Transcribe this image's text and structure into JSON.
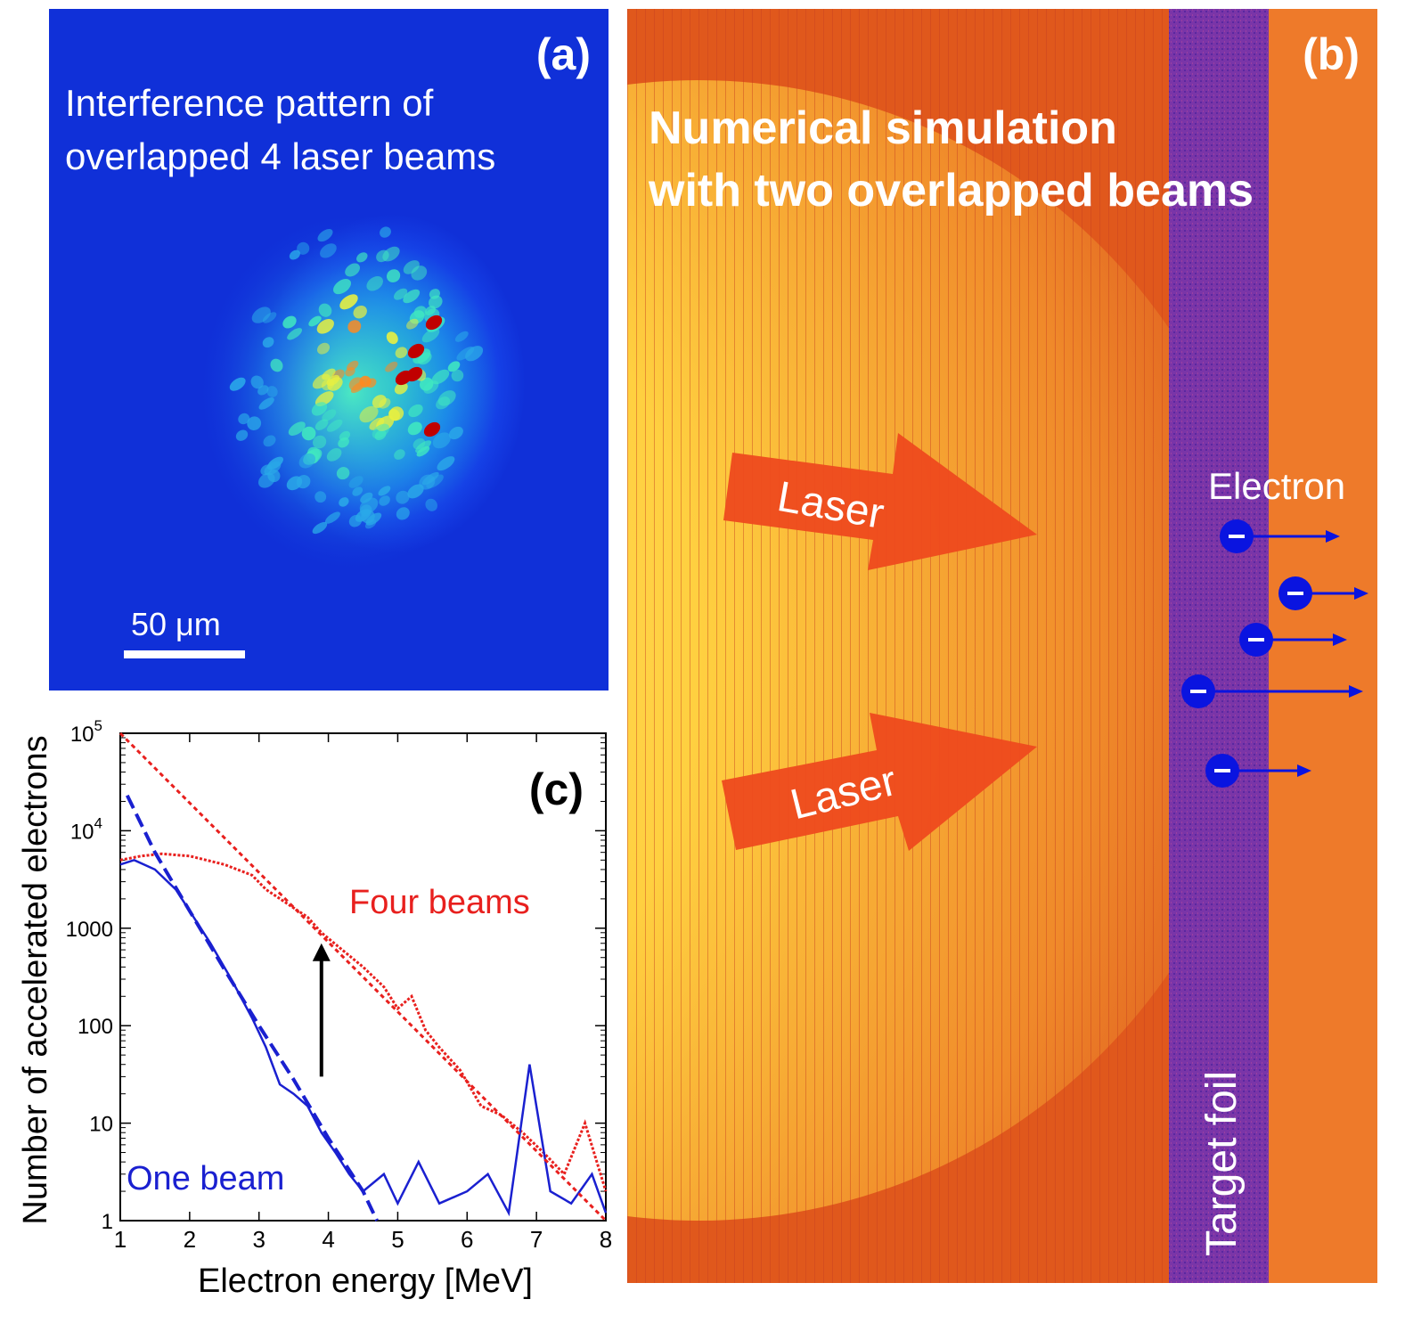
{
  "panel_a": {
    "tag": "(a)",
    "title_line1": "Interference pattern of",
    "title_line2": "overlapped 4 laser beams",
    "scale_label": "50 μm",
    "colors": {
      "background": "#1230d8",
      "scale_bar": "#ffffff"
    }
  },
  "panel_b": {
    "tag": "(b)",
    "title_line1": "Numerical simulation",
    "title_line2": "with two overlapped beams",
    "laser_label_1": "Laser",
    "laser_label_2": "Laser",
    "electron_label": "Electron",
    "foil_label": "Target foil",
    "colors": {
      "background": "#e8601a",
      "foil": "#7a35a8",
      "arrow": "#ee4a1e",
      "electron": "#0a14e0"
    }
  },
  "chart_data": {
    "type": "line",
    "tag": "(c)",
    "xlabel": "Electron energy [MeV]",
    "ylabel": "Number of accelerated electrons",
    "xlim": [
      1,
      8
    ],
    "ylim_log10": [
      0,
      5
    ],
    "yscale": "log",
    "x_ticks": [
      "1",
      "2",
      "3",
      "4",
      "5",
      "6",
      "7",
      "8"
    ],
    "y_ticks": [
      {
        "base": "10",
        "exp": "5"
      },
      {
        "base": "10",
        "exp": "4"
      },
      {
        "base": "1000",
        "exp": ""
      },
      {
        "base": "100",
        "exp": ""
      },
      {
        "base": "10",
        "exp": ""
      },
      {
        "base": "1",
        "exp": ""
      }
    ],
    "series": [
      {
        "name": "Four beams",
        "color": "#e8201e",
        "style": "dotted",
        "x": [
          1.0,
          1.3,
          1.6,
          2.0,
          2.5,
          2.9,
          3.1,
          3.4,
          3.7,
          3.9,
          4.2,
          4.5,
          4.8,
          5.0,
          5.2,
          5.4,
          5.6,
          5.9,
          6.2,
          6.5,
          6.8,
          7.1,
          7.4,
          7.7,
          8.0
        ],
        "y": [
          5000,
          5500,
          5800,
          5500,
          4500,
          3500,
          2500,
          1800,
          1300,
          900,
          600,
          400,
          250,
          150,
          200,
          90,
          60,
          35,
          15,
          12,
          8,
          5,
          3,
          10,
          2
        ]
      },
      {
        "name": "One beam",
        "color": "#1a20d0",
        "style": "solid",
        "x": [
          1.0,
          1.2,
          1.5,
          1.8,
          2.0,
          2.3,
          2.6,
          2.9,
          3.1,
          3.3,
          3.5,
          3.7,
          3.9,
          4.1,
          4.3,
          4.5,
          4.8,
          5.0,
          5.3,
          5.6,
          6.0,
          6.3,
          6.6,
          6.9,
          7.2,
          7.5,
          7.8,
          8.0
        ],
        "y": [
          4500,
          5000,
          4000,
          2500,
          1500,
          700,
          300,
          120,
          60,
          25,
          20,
          15,
          8,
          5,
          3,
          2,
          3,
          1.5,
          4,
          1.5,
          2,
          3,
          1.2,
          40,
          2,
          1.5,
          3,
          1.2
        ]
      },
      {
        "name": "Four beams fit",
        "color": "#e8201e",
        "style": "dashed",
        "x": [
          1.0,
          8.0
        ],
        "y": [
          100000,
          1
        ]
      },
      {
        "name": "One beam fit",
        "color": "#1a20d0",
        "style": "dashed",
        "x": [
          1.1,
          1.5,
          2.0,
          2.5,
          3.0,
          3.5,
          4.0,
          4.5,
          4.7
        ],
        "y": [
          23000,
          6000,
          1500,
          380,
          100,
          28,
          7,
          2,
          1
        ]
      }
    ],
    "legend": [
      {
        "text": "Four beams",
        "color": "#e8201e"
      },
      {
        "text": "One beam",
        "color": "#1a20d0"
      }
    ],
    "annotation": {
      "type": "arrow-up",
      "x": 3.9,
      "y_from": 30,
      "y_to": 700
    }
  }
}
